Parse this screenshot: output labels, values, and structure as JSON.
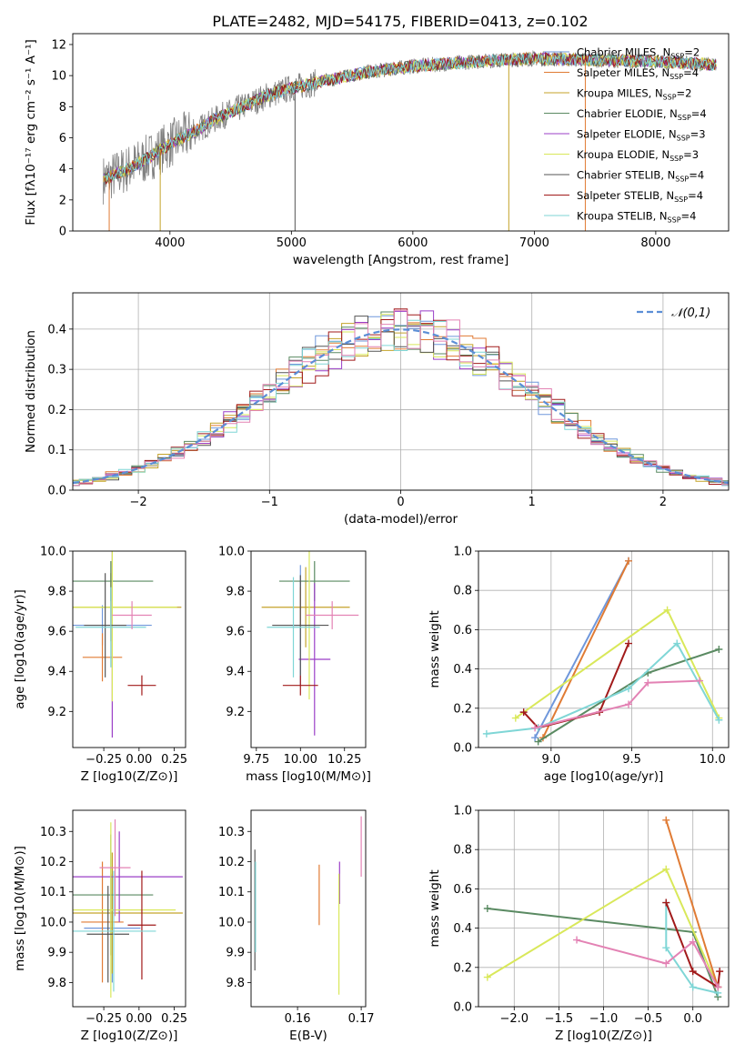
{
  "figure_title": "PLATE=2482, MJD=54175, FIBERID=0413, z=0.102",
  "colors": {
    "Chabrier MILES": "#6f97db",
    "Salpeter MILES": "#e07b34",
    "Kroupa MILES": "#c4a32a",
    "Chabrier ELODIE": "#5a8a62",
    "Salpeter ELODIE": "#9b3fc7",
    "Kroupa ELODIE": "#d9e85a",
    "Chabrier STELIB": "#555555",
    "Salpeter STELIB": "#a11a1a",
    "Kroupa STELIB": "#7fd6d6",
    "data": "#808080",
    "extra": "#e382b4",
    "gaussian": "#5b8ed6"
  },
  "chart_data": [
    {
      "id": "spectrum",
      "type": "line",
      "xlabel": "wavelength [Angstrom, rest frame]",
      "ylabel": "Flux [fλ10⁻¹⁷ erg cm⁻² s⁻¹ A⁻¹]",
      "xlim": [
        3200,
        8600
      ],
      "ylim": [
        0,
        12.7
      ],
      "xticks": [
        4000,
        5000,
        6000,
        7000,
        8000
      ],
      "yticks": [
        0,
        2,
        4,
        6,
        8,
        10,
        12
      ],
      "grid": false,
      "legend": [
        "Chabrier MILES, NSSP=2",
        "Salpeter MILES, NSSP=4",
        "Kroupa MILES, NSSP=2",
        "Chabrier ELODIE, NSSP=4",
        "Salpeter ELODIE, NSSP=3",
        "Kroupa ELODIE, NSSP=3",
        "Chabrier STELIB, NSSP=4",
        "Salpeter STELIB, NSSP=4",
        "Kroupa STELIB, NSSP=4"
      ],
      "legend_placement": "right",
      "trend": [
        [
          3450,
          3.3
        ],
        [
          3600,
          3.8
        ],
        [
          3800,
          4.6
        ],
        [
          4000,
          5.6
        ],
        [
          4200,
          6.4
        ],
        [
          4400,
          7.3
        ],
        [
          4600,
          8.0
        ],
        [
          4800,
          8.7
        ],
        [
          5000,
          9.2
        ],
        [
          5300,
          9.7
        ],
        [
          5600,
          10.2
        ],
        [
          6000,
          10.6
        ],
        [
          6500,
          10.9
        ],
        [
          7000,
          11.1
        ],
        [
          7500,
          11.0
        ],
        [
          8000,
          10.9
        ],
        [
          8500,
          10.7
        ]
      ]
    },
    {
      "id": "residuals",
      "type": "line",
      "xlabel": "(data-model)/error",
      "ylabel": "Normed distribution",
      "xlim": [
        -2.5,
        2.5
      ],
      "ylim": [
        0,
        0.49
      ],
      "xticks": [
        -2,
        -1,
        0,
        1,
        2
      ],
      "yticks": [
        0.0,
        0.1,
        0.2,
        0.3,
        0.4
      ],
      "grid": true,
      "legend": [
        "𝒩(0,1)"
      ],
      "legend_placement": "top-right"
    },
    {
      "id": "age-Z",
      "type": "scatter",
      "xlabel": "Z [log10(Z/Z⊙)]",
      "ylabel": "age  [log10(age/yr)]",
      "xlim": [
        -0.47,
        0.33
      ],
      "ylim": [
        9.02,
        10.0
      ],
      "xticks": [
        -0.25,
        0.0,
        0.25
      ],
      "yticks": [
        9.2,
        9.4,
        9.6,
        9.8,
        10.0
      ],
      "points": [
        {
          "series": "Chabrier MILES",
          "x": -0.26,
          "y": 9.63,
          "xerr": [
            0.35,
            0.35
          ],
          "yerr": [
            0.1,
            0.1
          ]
        },
        {
          "series": "Salpeter MILES",
          "x": -0.26,
          "y": 9.47,
          "xerr": [
            0.14,
            0.14
          ],
          "yerr": [
            0.12,
            0.12
          ]
        },
        {
          "series": "Kroupa MILES",
          "x": -0.2,
          "y": 9.72,
          "xerr": [
            0.5,
            0.5
          ],
          "yerr": [
            0.17,
            0.17
          ]
        },
        {
          "series": "Chabrier ELODIE",
          "x": -0.2,
          "y": 9.85,
          "xerr": [
            0.3,
            0.3
          ],
          "yerr": [
            0.1,
            0.1
          ]
        },
        {
          "series": "Salpeter ELODIE",
          "x": -0.19,
          "y": 9.63,
          "xerr": [
            0.0,
            0.0
          ],
          "yerr": [
            0.56,
            0.56
          ]
        },
        {
          "series": "Kroupa ELODIE",
          "x": -0.19,
          "y": 9.72,
          "xerr": [
            0.46,
            0.46
          ],
          "yerr": [
            0.47,
            0.47
          ]
        },
        {
          "series": "Chabrier STELIB",
          "x": -0.24,
          "y": 9.63,
          "xerr": [
            0.15,
            0.15
          ],
          "yerr": [
            0.26,
            0.26
          ]
        },
        {
          "series": "Salpeter STELIB",
          "x": 0.02,
          "y": 9.33,
          "xerr": [
            0.1,
            0.1
          ],
          "yerr": [
            0.05,
            0.05
          ]
        },
        {
          "series": "Kroupa STELIB",
          "x": -0.2,
          "y": 9.62,
          "xerr": [
            0.25,
            0.25
          ],
          "yerr": [
            0.2,
            0.2
          ]
        },
        {
          "series": "extra",
          "x": -0.05,
          "y": 9.68,
          "xerr": [
            0.14,
            0.14
          ],
          "yerr": [
            0.07,
            0.07
          ]
        }
      ]
    },
    {
      "id": "age-mass",
      "type": "scatter",
      "xlabel": "mass [log10(M/M⊙)]",
      "ylabel": "",
      "xlim": [
        9.72,
        10.37
      ],
      "ylim": [
        9.02,
        10.0
      ],
      "xticks": [
        9.75,
        10.0,
        10.25
      ],
      "yticks": [
        9.2,
        9.4,
        9.6,
        9.8,
        10.0
      ],
      "points": [
        {
          "series": "Chabrier MILES",
          "x": 10.0,
          "y": 9.63,
          "xerr": [
            0.05,
            0.05
          ],
          "yerr": [
            0.3,
            0.3
          ]
        },
        {
          "series": "Salpeter MILES",
          "x": 10.0,
          "y": 9.72,
          "xerr": [
            0.0,
            0.0
          ],
          "yerr": [
            0.1,
            0.1
          ]
        },
        {
          "series": "Kroupa MILES",
          "x": 10.03,
          "y": 9.72,
          "xerr": [
            0.25,
            0.25
          ],
          "yerr": [
            0.2,
            0.2
          ]
        },
        {
          "series": "Chabrier ELODIE",
          "x": 10.08,
          "y": 9.85,
          "xerr": [
            0.2,
            0.2
          ],
          "yerr": [
            0.1,
            0.1
          ]
        },
        {
          "series": "Salpeter ELODIE",
          "x": 10.08,
          "y": 9.46,
          "xerr": [
            0.09,
            0.09
          ],
          "yerr": [
            0.38,
            0.38
          ]
        },
        {
          "series": "Kroupa ELODIE",
          "x": 10.05,
          "y": 9.72,
          "xerr": [
            0.0,
            0.0
          ],
          "yerr": [
            0.46,
            0.46
          ]
        },
        {
          "series": "Chabrier STELIB",
          "x": 10.0,
          "y": 9.63,
          "xerr": [
            0.16,
            0.16
          ],
          "yerr": [
            0.25,
            0.25
          ]
        },
        {
          "series": "Salpeter STELIB",
          "x": 10.0,
          "y": 9.33,
          "xerr": [
            0.1,
            0.1
          ],
          "yerr": [
            0.05,
            0.05
          ]
        },
        {
          "series": "Kroupa STELIB",
          "x": 9.96,
          "y": 9.62,
          "xerr": [
            0.15,
            0.15
          ],
          "yerr": [
            0.25,
            0.25
          ]
        },
        {
          "series": "extra",
          "x": 10.18,
          "y": 9.68,
          "xerr": [
            0.15,
            0.15
          ],
          "yerr": [
            0.07,
            0.07
          ]
        }
      ]
    },
    {
      "id": "weight-age",
      "type": "line",
      "xlabel": "age  [log10(age/yr)]",
      "ylabel": "mass weight",
      "xlim": [
        8.55,
        10.1
      ],
      "ylim": [
        0.0,
        1.0
      ],
      "xticks": [
        9.0,
        9.5,
        10.0
      ],
      "yticks": [
        0.0,
        0.2,
        0.4,
        0.6,
        0.8,
        1.0
      ],
      "grid": true,
      "series": [
        {
          "series": "Chabrier MILES",
          "points": [
            [
              8.9,
              0.05
            ],
            [
              9.48,
              0.95
            ]
          ]
        },
        {
          "series": "Salpeter MILES",
          "points": [
            [
              8.95,
              0.05
            ],
            [
              9.48,
              0.95
            ]
          ]
        },
        {
          "series": "Kroupa ELODIE",
          "points": [
            [
              8.78,
              0.15
            ],
            [
              9.72,
              0.7
            ],
            [
              10.04,
              0.15
            ]
          ]
        },
        {
          "series": "Chabrier ELODIE",
          "points": [
            [
              8.92,
              0.03
            ],
            [
              9.6,
              0.38
            ],
            [
              10.04,
              0.5
            ]
          ]
        },
        {
          "series": "Salpeter STELIB",
          "points": [
            [
              8.83,
              0.18
            ],
            [
              8.92,
              0.1
            ],
            [
              9.3,
              0.18
            ],
            [
              9.48,
              0.53
            ]
          ]
        },
        {
          "series": "Kroupa STELIB",
          "points": [
            [
              8.6,
              0.07
            ],
            [
              8.92,
              0.1
            ],
            [
              9.48,
              0.3
            ],
            [
              9.78,
              0.53
            ],
            [
              10.04,
              0.14
            ]
          ]
        },
        {
          "series": "extra",
          "points": [
            [
              8.9,
              0.1
            ],
            [
              9.48,
              0.22
            ],
            [
              9.6,
              0.33
            ],
            [
              9.92,
              0.34
            ]
          ]
        }
      ]
    },
    {
      "id": "mass-Z",
      "type": "scatter",
      "xlabel": "Z [log10(Z/Z⊙)]",
      "ylabel": "mass [log10(M/M⊙)]",
      "xlim": [
        -0.47,
        0.33
      ],
      "ylim": [
        9.72,
        10.37
      ],
      "xticks": [
        -0.25,
        0.0,
        0.25
      ],
      "yticks": [
        9.8,
        9.9,
        10.0,
        10.1,
        10.2,
        10.3
      ],
      "points": [
        {
          "series": "Chabrier MILES",
          "x": -0.19,
          "y": 9.98,
          "xerr": [
            0.2,
            0.2
          ],
          "yerr": [
            0.18,
            0.18
          ]
        },
        {
          "series": "Salpeter MILES",
          "x": -0.26,
          "y": 10.0,
          "xerr": [
            0.15,
            0.15
          ],
          "yerr": [
            0.2,
            0.2
          ]
        },
        {
          "series": "Kroupa MILES",
          "x": -0.19,
          "y": 10.03,
          "xerr": [
            0.5,
            0.5
          ],
          "yerr": [
            0.2,
            0.2
          ]
        },
        {
          "series": "Chabrier ELODIE",
          "x": -0.2,
          "y": 10.09,
          "xerr": [
            0.3,
            0.3
          ],
          "yerr": [
            0.2,
            0.2
          ]
        },
        {
          "series": "Salpeter ELODIE",
          "x": -0.14,
          "y": 10.15,
          "xerr": [
            0.45,
            0.45
          ],
          "yerr": [
            0.15,
            0.15
          ]
        },
        {
          "series": "Kroupa ELODIE",
          "x": -0.2,
          "y": 10.04,
          "xerr": [
            0.46,
            0.46
          ],
          "yerr": [
            0.29,
            0.29
          ]
        },
        {
          "series": "Chabrier STELIB",
          "x": -0.22,
          "y": 9.96,
          "xerr": [
            0.15,
            0.15
          ],
          "yerr": [
            0.16,
            0.16
          ]
        },
        {
          "series": "Salpeter STELIB",
          "x": 0.02,
          "y": 9.99,
          "xerr": [
            0.1,
            0.1
          ],
          "yerr": [
            0.18,
            0.18
          ]
        },
        {
          "series": "Kroupa STELIB",
          "x": -0.18,
          "y": 9.97,
          "xerr": [
            0.3,
            0.3
          ],
          "yerr": [
            0.2,
            0.2
          ]
        },
        {
          "series": "extra",
          "x": -0.17,
          "y": 10.18,
          "xerr": [
            0.11,
            0.11
          ],
          "yerr": [
            0.16,
            0.16
          ]
        }
      ]
    },
    {
      "id": "mass-ebv",
      "type": "scatter",
      "xlabel": "E(B-V)",
      "ylabel": "",
      "xlim": [
        0.1527,
        0.1707
      ],
      "ylim": [
        9.72,
        10.37
      ],
      "xticks": [
        0.16,
        0.17
      ],
      "yticks": [
        9.8,
        9.9,
        10.0,
        10.1,
        10.2,
        10.3
      ],
      "points": [
        {
          "series": "Chabrier STELIB",
          "x": 0.1533,
          "y": 10.04,
          "xerr": [
            0,
            0
          ],
          "yerr": [
            0.2,
            0.2
          ]
        },
        {
          "series": "Kroupa STELIB",
          "x": 0.1534,
          "y": 10.05,
          "xerr": [
            0,
            0
          ],
          "yerr": [
            0.15,
            0.15
          ]
        },
        {
          "series": "Salpeter MILES",
          "x": 0.1634,
          "y": 10.09,
          "xerr": [
            0,
            0
          ],
          "yerr": [
            0.1,
            0.1
          ]
        },
        {
          "series": "Salpeter ELODIE",
          "x": 0.1666,
          "y": 10.13,
          "xerr": [
            0,
            0
          ],
          "yerr": [
            0.07,
            0.07
          ]
        },
        {
          "series": "Kroupa ELODIE",
          "x": 0.1665,
          "y": 9.96,
          "xerr": [
            0,
            0
          ],
          "yerr": [
            0.2,
            0.2
          ]
        },
        {
          "series": "extra",
          "x": 0.17,
          "y": 10.25,
          "xerr": [
            0,
            0
          ],
          "yerr": [
            0.1,
            0.1
          ]
        }
      ]
    },
    {
      "id": "weight-Z",
      "type": "line",
      "xlabel": "Z [log10(Z/Z⊙)]",
      "ylabel": "mass weight",
      "xlim": [
        -2.4,
        0.4
      ],
      "ylim": [
        0.0,
        1.0
      ],
      "xticks": [
        -2.0,
        -1.5,
        -1.0,
        -0.5,
        0.0
      ],
      "yticks": [
        0.0,
        0.2,
        0.4,
        0.6,
        0.8,
        1.0
      ],
      "grid": true,
      "series": [
        {
          "series": "Chabrier ELODIE",
          "points": [
            [
              -2.3,
              0.5
            ],
            [
              0.0,
              0.38
            ],
            [
              0.28,
              0.05
            ]
          ]
        },
        {
          "series": "Kroupa ELODIE",
          "points": [
            [
              -2.3,
              0.15
            ],
            [
              -0.3,
              0.7
            ],
            [
              0.28,
              0.1
            ]
          ]
        },
        {
          "series": "Salpeter MILES",
          "points": [
            [
              -0.3,
              0.95
            ],
            [
              0.28,
              0.1
            ]
          ]
        },
        {
          "series": "Kroupa STELIB",
          "points": [
            [
              -0.3,
              0.53
            ],
            [
              -0.3,
              0.3
            ],
            [
              0.0,
              0.1
            ],
            [
              0.28,
              0.07
            ]
          ]
        },
        {
          "series": "Salpeter STELIB",
          "points": [
            [
              -0.3,
              0.53
            ],
            [
              0.0,
              0.18
            ],
            [
              0.28,
              0.1
            ],
            [
              0.3,
              0.18
            ]
          ]
        },
        {
          "series": "extra",
          "points": [
            [
              -1.3,
              0.34
            ],
            [
              -0.3,
              0.22
            ],
            [
              0.0,
              0.33
            ],
            [
              0.28,
              0.1
            ]
          ]
        }
      ]
    }
  ]
}
